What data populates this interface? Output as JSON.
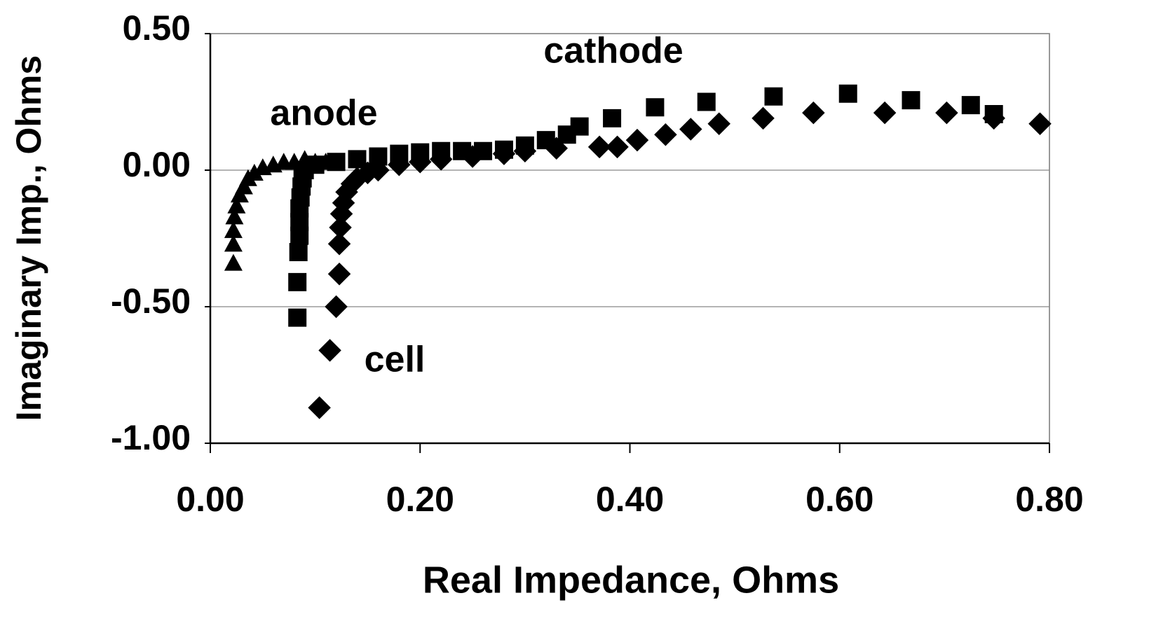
{
  "chart_data": {
    "type": "scatter",
    "xlabel": "Real Impedance, Ohms",
    "ylabel": "Imaginary Imp., Ohms",
    "xlim": [
      0,
      0.8
    ],
    "xticks": [
      {
        "value": 0,
        "label": "0.00"
      },
      {
        "value": 0.2,
        "label": "0.20"
      },
      {
        "value": 0.4,
        "label": "0.40"
      },
      {
        "value": 0.6,
        "label": "0.60"
      },
      {
        "value": 0.8,
        "label": "0.80"
      }
    ],
    "ylim": [
      -1,
      0.5
    ],
    "yticks": [
      {
        "value": -1,
        "label": "-1.00"
      },
      {
        "value": -0.5,
        "label": "-0.50"
      },
      {
        "value": 0,
        "label": "0.00"
      },
      {
        "value": 0.5,
        "label": "0.50"
      }
    ],
    "grid": true,
    "series": [
      {
        "name": "anode",
        "marker": "triangle",
        "color": "#000000",
        "x": [
          0.022,
          0.022,
          0.022,
          0.023,
          0.025,
          0.028,
          0.032,
          0.036,
          0.042,
          0.05,
          0.06,
          0.07,
          0.08,
          0.09,
          0.1,
          0.11,
          0.12
        ],
        "values": [
          -0.34,
          -0.27,
          -0.22,
          -0.17,
          -0.13,
          -0.09,
          -0.06,
          -0.03,
          -0.01,
          0.01,
          0.02,
          0.03,
          0.03,
          0.04,
          0.03,
          0.03,
          0.03
        ]
      },
      {
        "name": "cathode",
        "marker": "square",
        "color": "#000000",
        "x": [
          0.083,
          0.083,
          0.084,
          0.085,
          0.085,
          0.085,
          0.086,
          0.087,
          0.088,
          0.09,
          0.1,
          0.12,
          0.14,
          0.16,
          0.18,
          0.2,
          0.22,
          0.24,
          0.26,
          0.28,
          0.3,
          0.32,
          0.34,
          0.352,
          0.383,
          0.424,
          0.473,
          0.537,
          0.608,
          0.668,
          0.725,
          0.747
        ],
        "values": [
          -0.54,
          -0.41,
          -0.3,
          -0.24,
          -0.19,
          -0.14,
          -0.1,
          -0.06,
          -0.03,
          0.0,
          0.02,
          0.03,
          0.04,
          0.05,
          0.06,
          0.065,
          0.07,
          0.07,
          0.07,
          0.075,
          0.09,
          0.11,
          0.13,
          0.16,
          0.19,
          0.23,
          0.25,
          0.27,
          0.28,
          0.256,
          0.238,
          0.205
        ]
      },
      {
        "name": "cell",
        "marker": "diamond",
        "color": "#000000",
        "x": [
          0.104,
          0.114,
          0.12,
          0.123,
          0.123,
          0.124,
          0.125,
          0.127,
          0.13,
          0.135,
          0.14,
          0.15,
          0.16,
          0.18,
          0.2,
          0.22,
          0.25,
          0.28,
          0.3,
          0.33,
          0.371,
          0.388,
          0.407,
          0.434,
          0.458,
          0.485,
          0.527,
          0.575,
          0.643,
          0.702,
          0.747,
          0.791
        ],
        "values": [
          -0.87,
          -0.66,
          -0.5,
          -0.38,
          -0.27,
          -0.21,
          -0.16,
          -0.12,
          -0.08,
          -0.05,
          -0.03,
          -0.01,
          0.0,
          0.02,
          0.03,
          0.04,
          0.05,
          0.06,
          0.07,
          0.08,
          0.085,
          0.085,
          0.11,
          0.13,
          0.15,
          0.17,
          0.19,
          0.21,
          0.21,
          0.21,
          0.19,
          0.17
        ]
      }
    ]
  }
}
